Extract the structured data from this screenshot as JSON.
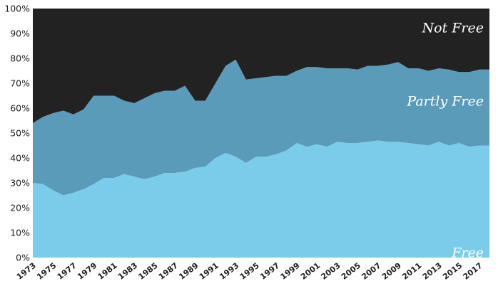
{
  "chart_data": {
    "type": "area",
    "stacked": true,
    "percent_stacked": true,
    "title": "",
    "xlabel": "",
    "ylabel": "",
    "ylim": [
      0,
      100
    ],
    "y_ticks": [
      "0%",
      "10%",
      "20%",
      "30%",
      "40%",
      "50%",
      "60%",
      "70%",
      "80%",
      "90%",
      "100%"
    ],
    "x_tick_labels": [
      "1973",
      "1975",
      "1977",
      "1979",
      "1981",
      "1983",
      "1985",
      "1987",
      "1989",
      "1991",
      "1993",
      "1995",
      "1997",
      "1999",
      "2001",
      "2003",
      "2005",
      "2007",
      "2009",
      "2011",
      "2013",
      "2015",
      "2017"
    ],
    "x": [
      1973,
      1974,
      1975,
      1976,
      1977,
      1978,
      1979,
      1980,
      1981,
      1982,
      1983,
      1984,
      1985,
      1986,
      1987,
      1988,
      1989,
      1990,
      1991,
      1992,
      1993,
      1994,
      1995,
      1996,
      1997,
      1998,
      1999,
      2000,
      2001,
      2002,
      2003,
      2004,
      2005,
      2006,
      2007,
      2008,
      2009,
      2010,
      2011,
      2012,
      2013,
      2014,
      2015,
      2016,
      2017,
      2018
    ],
    "series": [
      {
        "name": "Free",
        "color": "#7accea",
        "values": [
          30,
          29.5,
          27,
          25,
          26,
          27.5,
          29.5,
          32,
          32,
          33.5,
          32.5,
          31.5,
          32.5,
          34,
          34,
          34.5,
          36,
          36.5,
          40,
          42,
          40.5,
          38,
          40.5,
          40.5,
          41.5,
          43,
          46,
          44.5,
          45.5,
          44.5,
          46.5,
          46,
          46,
          46.5,
          47,
          46.5,
          46.5,
          46,
          45.5,
          45,
          46.5,
          45,
          46,
          44.5,
          45,
          45
        ]
      },
      {
        "name": "Partly Free",
        "color": "#5b9bba",
        "values": [
          24,
          27,
          31,
          34,
          31.5,
          32,
          35.5,
          33,
          33,
          29.5,
          29.5,
          32.5,
          33.5,
          33,
          33,
          34.5,
          27,
          26.5,
          30,
          35,
          39,
          33.5,
          31.5,
          32,
          31.5,
          30,
          29,
          32,
          31,
          31.5,
          29.5,
          30,
          29.5,
          30.5,
          30,
          31,
          32,
          30,
          30.5,
          30,
          29.5,
          30.5,
          28.5,
          30,
          30.5,
          30.5
        ]
      },
      {
        "name": "Not Free",
        "color": "#222222",
        "values": [
          46,
          43.5,
          42,
          41,
          42.5,
          40.5,
          35,
          35,
          35,
          37,
          38,
          36,
          34,
          33,
          33,
          31,
          37,
          37,
          30,
          23,
          20.5,
          28.5,
          28,
          27.5,
          27,
          27,
          25,
          23.5,
          23.5,
          24,
          24,
          24,
          24.5,
          23,
          23,
          22.5,
          21.5,
          24,
          24,
          25,
          24,
          24.5,
          25.5,
          25.5,
          24.5,
          24.5
        ]
      }
    ]
  }
}
